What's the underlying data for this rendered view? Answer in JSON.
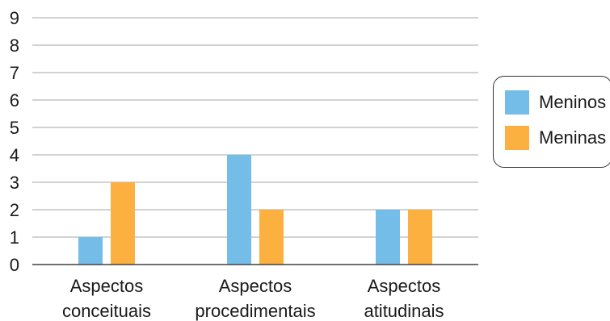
{
  "chart_data": {
    "type": "bar",
    "title": "",
    "xlabel": "",
    "ylabel": "",
    "ylim": [
      0,
      9
    ],
    "yticks": [
      0,
      1,
      2,
      3,
      4,
      5,
      6,
      7,
      8,
      9
    ],
    "grid": true,
    "legend_position": "right",
    "categories": [
      [
        "Aspectos",
        "conceituais"
      ],
      [
        "Aspectos",
        "procedimentais"
      ],
      [
        "Aspectos",
        "atitudinais"
      ]
    ],
    "series": [
      {
        "name": "Meninos",
        "color": "#74bde8",
        "values": [
          1,
          4,
          2
        ]
      },
      {
        "name": "Meninas",
        "color": "#fbb040",
        "values": [
          3,
          2,
          2
        ]
      }
    ]
  }
}
